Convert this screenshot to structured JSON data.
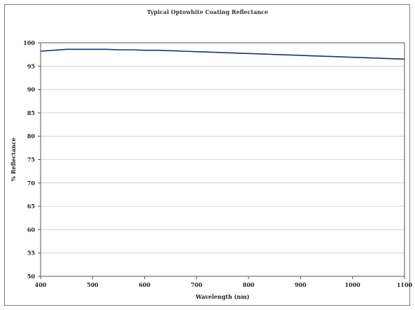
{
  "chart_data": {
    "type": "line",
    "title": "Typical Optowhite Coating Reflectance",
    "xlabel": "Wavelength (nm)",
    "ylabel": "% Reflectance",
    "xlim": [
      400,
      1100
    ],
    "ylim": [
      50,
      100
    ],
    "x_ticks": [
      400,
      500,
      600,
      700,
      800,
      900,
      1000,
      1100
    ],
    "y_ticks": [
      50,
      55,
      60,
      65,
      70,
      75,
      80,
      85,
      90,
      95,
      100
    ],
    "grid": true,
    "legend": "none",
    "series": [
      {
        "color": "#1f2f7a",
        "x": [
          400,
          425,
          450,
          475,
          500,
          525,
          550,
          575,
          600,
          625,
          650,
          675,
          700,
          725,
          750,
          775,
          800,
          825,
          850,
          875,
          900,
          925,
          950,
          975,
          1000,
          1025,
          1050,
          1075,
          1100
        ],
        "y": [
          98.2,
          98.4,
          98.6,
          98.6,
          98.6,
          98.6,
          98.5,
          98.5,
          98.4,
          98.4,
          98.3,
          98.2,
          98.1,
          98.0,
          97.9,
          97.8,
          97.7,
          97.6,
          97.5,
          97.4,
          97.3,
          97.2,
          97.1,
          97.0,
          96.9,
          96.8,
          96.7,
          96.6,
          96.5
        ]
      }
    ]
  }
}
